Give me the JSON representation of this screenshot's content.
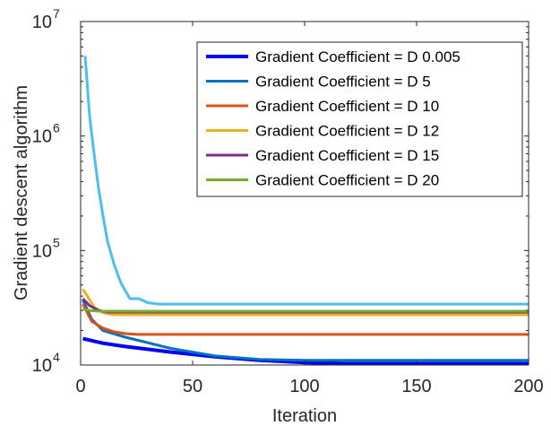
{
  "chart_data": {
    "type": "line",
    "xlabel": "Iteration",
    "ylabel": "Gradient descent algorithm",
    "xlim": [
      0,
      200
    ],
    "ylim": [
      10000,
      10000000
    ],
    "yscale": "log",
    "xticks": [
      0,
      50,
      100,
      150,
      200
    ],
    "yticks": [
      {
        "value": 10000,
        "base": "10",
        "exp": "4"
      },
      {
        "value": 100000,
        "base": "10",
        "exp": "5"
      },
      {
        "value": 1000000,
        "base": "10",
        "exp": "6"
      },
      {
        "value": 10000000,
        "base": "10",
        "exp": "7"
      }
    ],
    "grid": false,
    "legend_position": "top-right",
    "series": [
      {
        "name": "Gradient Coefficient = D 0.005",
        "color": "#0000ff",
        "x": [
          1,
          10,
          20,
          40,
          60,
          80,
          100,
          120,
          200
        ],
        "y": [
          17000,
          15500,
          14500,
          13000,
          11800,
          11000,
          10500,
          10300,
          10300
        ]
      },
      {
        "name": "Gradient Coefficient = D 5",
        "color": "#0072bd",
        "x": [
          1,
          5,
          10,
          20,
          40,
          60,
          80,
          100,
          200
        ],
        "y": [
          37000,
          25000,
          20000,
          17500,
          14000,
          12000,
          11200,
          11000,
          11000
        ]
      },
      {
        "name": "Gradient Coefficient = D 10",
        "color": "#d95319",
        "x": [
          1,
          5,
          10,
          15,
          20,
          25,
          200
        ],
        "y": [
          34000,
          24000,
          21000,
          19500,
          18800,
          18500,
          18500
        ]
      },
      {
        "name": "Gradient Coefficient = D 12",
        "color": "#edb120",
        "x": [
          1,
          3,
          6,
          10,
          15,
          200
        ],
        "y": [
          46000,
          40000,
          32000,
          28500,
          27500,
          27500
        ]
      },
      {
        "name": "Gradient Coefficient = D 15",
        "color": "#7e2f8e",
        "x": [
          1,
          4,
          8,
          12,
          200
        ],
        "y": [
          38000,
          33000,
          30000,
          29000,
          29000
        ]
      },
      {
        "name": "Gradient Coefficient = D 20",
        "color": "#77ac30",
        "x": [
          1,
          4,
          8,
          200
        ],
        "y": [
          31000,
          30000,
          29500,
          29500
        ]
      },
      {
        "name": "",
        "color": "#4dbeee",
        "x": [
          2,
          4,
          6,
          8,
          10,
          12,
          15,
          18,
          22,
          26,
          30,
          35,
          40,
          200
        ],
        "y": [
          5000000,
          1500000,
          700000,
          350000,
          200000,
          120000,
          75000,
          52000,
          38000,
          38000,
          35000,
          34000,
          34000,
          34000
        ]
      }
    ]
  }
}
